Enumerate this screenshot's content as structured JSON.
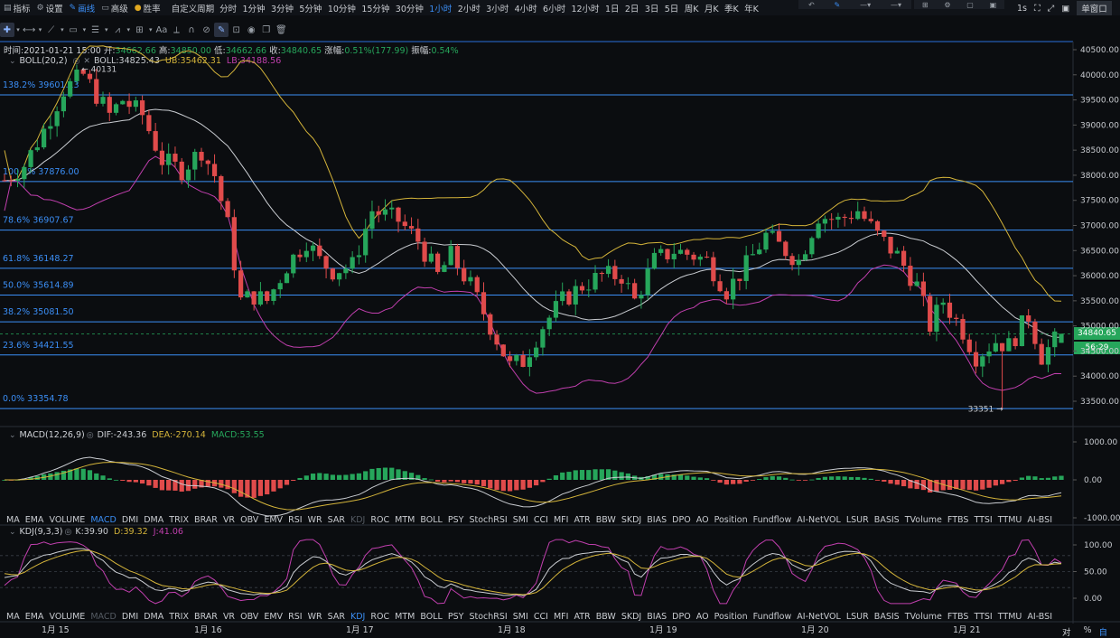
{
  "toolbar": {
    "indicators": "指标",
    "settings": "设置",
    "draw": "画线",
    "advanced": "高级",
    "winrate": "胜率",
    "custom_period": "自定义周期",
    "periods": [
      "分时",
      "1分钟",
      "3分钟",
      "5分钟",
      "10分钟",
      "15分钟",
      "30分钟",
      "1小时",
      "2小时",
      "3小时",
      "4小时",
      "6小时",
      "12小时",
      "1日",
      "2日",
      "3日",
      "5日",
      "周K",
      "月K",
      "季K",
      "年K"
    ],
    "active_period": "1小时",
    "right_interval": "1s",
    "single_window": "单窗口"
  },
  "info": {
    "time_label": "时间:",
    "time": "2021-01-21 15:00",
    "open_label": "开:",
    "open": "34662.66",
    "high_label": "高:",
    "high": "34850.00",
    "low_label": "低:",
    "low": "34662.66",
    "close_label": "收:",
    "close": "34840.65",
    "change_label": "涨幅:",
    "change": "0.51%(177.99)",
    "amp_label": "振幅:",
    "amp": "0.54%"
  },
  "boll": {
    "name": "BOLL(20,2)",
    "mid": "BOLL:34825.43",
    "ub": "UB:35462.31",
    "lb": "LB:34188.56"
  },
  "macd": {
    "name": "MACD(12,26,9)",
    "dif": "DIF:-243.36",
    "dea": "DEA:-270.14",
    "macd": "MACD:53.55"
  },
  "kdj": {
    "name": "KDJ(9,3,3)",
    "k": "K:39.90",
    "d": "D:39.32",
    "j": "J:41.06"
  },
  "fib": [
    {
      "label": "138.2% 39601.13",
      "price": 39601.13
    },
    {
      "label": "100.0% 37876.00",
      "price": 37876.0
    },
    {
      "label": "78.6% 36907.67",
      "price": 36907.67
    },
    {
      "label": "61.8% 36148.27",
      "price": 36148.27
    },
    {
      "label": "50.0% 35614.89",
      "price": 35614.89
    },
    {
      "label": "38.2% 35081.50",
      "price": 35081.5
    },
    {
      "label": "23.6% 34421.55",
      "price": 34421.55
    },
    {
      "label": "0.0% 33354.78",
      "price": 33354.78
    }
  ],
  "price_axis": [
    "40500.00",
    "40000.00",
    "39500.00",
    "39000.00",
    "38500.00",
    "38000.00",
    "37500.00",
    "37000.00",
    "36500.00",
    "36000.00",
    "35500.00",
    "35000.00",
    "34500.00",
    "34000.00",
    "33500.00"
  ],
  "price_axis_values": [
    40500,
    40000,
    39500,
    39000,
    38500,
    38000,
    37500,
    37000,
    36500,
    36000,
    35500,
    35000,
    34500,
    34000,
    33500
  ],
  "current_price": "34840.65",
  "countdown": "56:29",
  "high_marker": "40131",
  "low_marker": "33351",
  "macd_axis": [
    "1000.00",
    "0.00",
    "-1000.00"
  ],
  "kdj_axis": [
    "100.00",
    "50.00",
    "0.00"
  ],
  "indicator_tabs": [
    "MA",
    "EMA",
    "VOLUME",
    "MACD",
    "DMI",
    "DMA",
    "TRIX",
    "BRAR",
    "VR",
    "OBV",
    "EMV",
    "RSI",
    "WR",
    "SAR",
    "KDJ",
    "ROC",
    "MTM",
    "BOLL",
    "PSY",
    "StochRSI",
    "SMI",
    "CCI",
    "MFI",
    "ATR",
    "BBW",
    "SKDJ",
    "BIAS",
    "DPO",
    "AO",
    "Position",
    "Fundflow",
    "AI-NetVOL",
    "LSUR",
    "BASIS",
    "TVolume",
    "FTBS",
    "TTSI",
    "TTMU",
    "AI-BSI"
  ],
  "dates": [
    "1月 15",
    "1月 16",
    "1月 17",
    "1月 18",
    "1月 19",
    "1月 20",
    "1月 21"
  ],
  "bottom_right": {
    "log": "对数",
    "percent": "%",
    "auto": "自动"
  },
  "colors": {
    "up": "#26a65b",
    "down": "#e04b4b",
    "accent": "#3b8ef5",
    "mid": "#c9ccd1",
    "ub": "#d4b43a",
    "lb": "#c13fae"
  }
}
